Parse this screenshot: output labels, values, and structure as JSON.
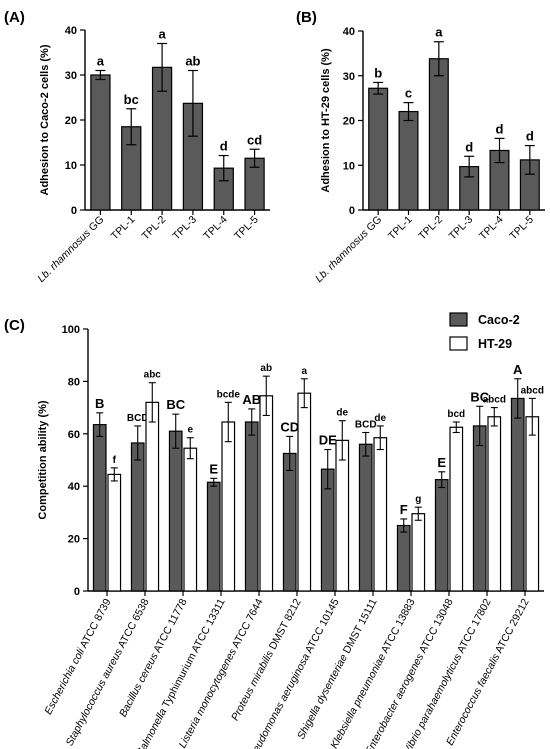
{
  "colors": {
    "dark_bar": "#5a5a5a",
    "light_bar": "#ffffff",
    "stroke": "#000000"
  },
  "chart_data": [
    {
      "panel": "(A)",
      "type": "bar",
      "ylabel": "Adhesion to Caco-2 cells (%)",
      "ylim": [
        0,
        40
      ],
      "yticks": [
        "0",
        "10",
        "20",
        "30",
        "40"
      ],
      "categories": [
        [
          {
            "t": "Lb. rhamnosus",
            "i": true
          },
          {
            "t": " GG",
            "i": false
          }
        ],
        [
          {
            "t": "TPL-1",
            "i": false
          }
        ],
        [
          {
            "t": "TPL-2",
            "i": false
          }
        ],
        [
          {
            "t": "TPL-3",
            "i": false
          }
        ],
        [
          {
            "t": "TPL-4",
            "i": false
          }
        ],
        [
          {
            "t": "TPL-5",
            "i": false
          }
        ]
      ],
      "values": [
        30,
        18.5,
        31.7,
        23.7,
        9.3,
        11.5
      ],
      "errors": [
        1.0,
        4.0,
        5.3,
        7.3,
        2.8,
        2.0
      ],
      "letters": [
        "a",
        "bc",
        "a",
        "ab",
        "d",
        "cd"
      ]
    },
    {
      "panel": "(B)",
      "type": "bar",
      "ylabel": "Adhesion to HT-29 cells (%)",
      "ylim": [
        0,
        40
      ],
      "yticks": [
        "0",
        "10",
        "20",
        "30",
        "40"
      ],
      "categories": [
        [
          {
            "t": "Lb. rhamnosus",
            "i": true
          },
          {
            "t": " GG",
            "i": false
          }
        ],
        [
          {
            "t": "TPL-1",
            "i": false
          }
        ],
        [
          {
            "t": "TPL-2",
            "i": false
          }
        ],
        [
          {
            "t": "TPL-3",
            "i": false
          }
        ],
        [
          {
            "t": "TPL-4",
            "i": false
          }
        ],
        [
          {
            "t": "TPL-5",
            "i": false
          }
        ]
      ],
      "values": [
        27.2,
        22,
        33.8,
        9.7,
        13.3,
        11.2
      ],
      "errors": [
        1.3,
        2.0,
        3.8,
        2.3,
        2.7,
        3.2
      ],
      "letters": [
        "b",
        "c",
        "a",
        "d",
        "d",
        "d"
      ]
    },
    {
      "panel": "(C)",
      "type": "bar",
      "ylabel": "Competition ability (%)",
      "ylim": [
        0,
        100
      ],
      "yticks": [
        "0",
        "20",
        "40",
        "60",
        "80",
        "100"
      ],
      "legend_position": "top-right",
      "categories": [
        [
          {
            "t": "Escherichia coli",
            "i": true
          },
          {
            "t": " ATCC 8739",
            "i": false
          }
        ],
        [
          {
            "t": "Staphylococcus aureus",
            "i": true
          },
          {
            "t": " ATCC 6538",
            "i": false
          }
        ],
        [
          {
            "t": "Bacillus cereus",
            "i": true
          },
          {
            "t": " ATCC 11778",
            "i": false
          }
        ],
        [
          {
            "t": "Salmonella",
            "i": true
          },
          {
            "t": " Typhimurium ATCC 13311",
            "i": false
          }
        ],
        [
          {
            "t": "Listeria monocytogenes",
            "i": true
          },
          {
            "t": " ATCC 7644",
            "i": false
          }
        ],
        [
          {
            "t": "Proteus mirabilis",
            "i": true
          },
          {
            "t": " DMST 8212",
            "i": false
          }
        ],
        [
          {
            "t": "Pseudomonas aeruginosa",
            "i": true
          },
          {
            "t": " ATCC 10145",
            "i": false
          }
        ],
        [
          {
            "t": "Shigella dysenteriae",
            "i": true
          },
          {
            "t": " DMST 15111",
            "i": false
          }
        ],
        [
          {
            "t": "Klebsiella pneumoniae",
            "i": true
          },
          {
            "t": " ATCC 13883",
            "i": false
          }
        ],
        [
          {
            "t": "Enterobacter aerogenes",
            "i": true
          },
          {
            "t": " ATCC 13048",
            "i": false
          }
        ],
        [
          {
            "t": "Vibrio parahaemolyticus",
            "i": true
          },
          {
            "t": " ATCC 17802",
            "i": false
          }
        ],
        [
          {
            "t": "Enterococcus faecalis",
            "i": true
          },
          {
            "t": " ATCC 29212",
            "i": false
          }
        ]
      ],
      "series": [
        {
          "name": "Caco-2",
          "values": [
            63.5,
            56.5,
            61,
            41.5,
            64.5,
            52.5,
            46.5,
            56,
            25,
            42.5,
            63,
            73.5
          ],
          "errors": [
            4.5,
            6.5,
            6.5,
            1.5,
            5.0,
            6.5,
            7.5,
            4.5,
            2.5,
            3.0,
            7.5,
            7.5
          ],
          "letters": [
            "B",
            "BCD",
            "BC",
            "E",
            "AB",
            "CD",
            "DE",
            "BCD",
            "F",
            "E",
            "BC",
            "A"
          ]
        },
        {
          "name": "HT-29",
          "values": [
            44.5,
            72,
            54.5,
            64.5,
            74.5,
            75.5,
            57.5,
            58.5,
            29.5,
            62.5,
            66.5,
            66.5
          ],
          "errors": [
            2.5,
            7.5,
            4.0,
            7.5,
            7.5,
            5.5,
            7.5,
            4.5,
            2.5,
            2.0,
            3.5,
            7.0
          ],
          "letters": [
            "f",
            "abc",
            "e",
            "bcde",
            "ab",
            "a",
            "de",
            "de",
            "g",
            "bcd",
            "abcd",
            "abcd"
          ]
        }
      ]
    }
  ]
}
